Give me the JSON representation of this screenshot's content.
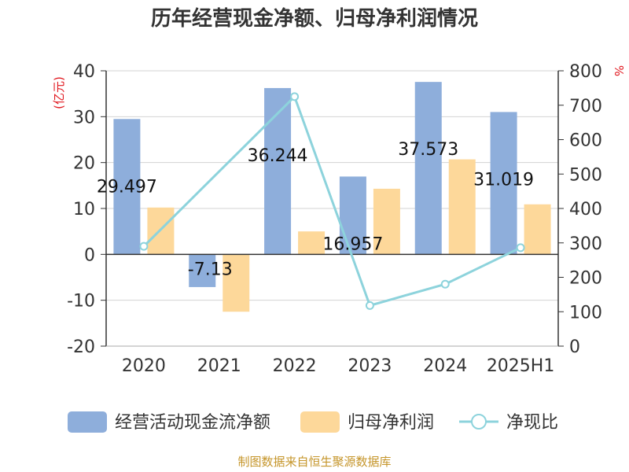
{
  "chart_data": {
    "type": "bar",
    "title": "历年经营现金净额、归母净利润情况",
    "categories": [
      "2020",
      "2021",
      "2022",
      "2023",
      "2024",
      "2025H1"
    ],
    "y_left": {
      "unit": "(亿元)",
      "ylim": [
        -20,
        40
      ],
      "ticks": [
        40,
        30,
        20,
        10,
        0,
        -10,
        -20
      ]
    },
    "y_right": {
      "unit": "%",
      "ylim": [
        0,
        800
      ],
      "ticks": [
        800,
        700,
        600,
        500,
        400,
        300,
        200,
        100,
        0
      ]
    },
    "series": [
      {
        "name": "经营活动现金流净额",
        "type": "bar",
        "axis": "left",
        "color": "#8eaedb",
        "values": [
          29.497,
          -7.13,
          36.244,
          16.957,
          37.573,
          31.019
        ],
        "labels": [
          "29.497",
          "-7.13",
          "36.244",
          "16.957",
          "37.573",
          "31.019"
        ]
      },
      {
        "name": "归母净利润",
        "type": "bar",
        "axis": "left",
        "color": "#fdd89a",
        "values": [
          10.2,
          -12.5,
          5.0,
          14.3,
          20.7,
          10.9
        ]
      },
      {
        "name": "净现比",
        "type": "line",
        "axis": "right",
        "color": "#8dd3dc",
        "values": [
          290,
          null,
          725,
          118,
          180,
          286
        ]
      }
    ],
    "grid": true,
    "legend_position": "bottom"
  },
  "footer": {
    "source": "制图数据来自恒生聚源数据库"
  }
}
